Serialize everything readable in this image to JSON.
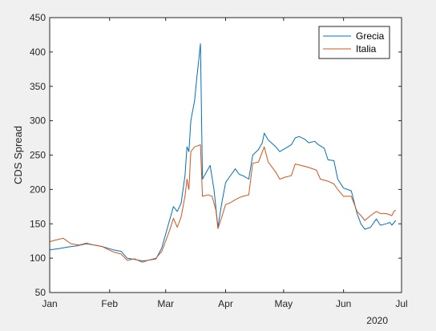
{
  "chart_data": {
    "type": "line",
    "xlabel": "",
    "ylabel": "CDS Spread",
    "ylim": [
      50,
      450
    ],
    "yticks": [
      50,
      100,
      150,
      200,
      250,
      300,
      350,
      400,
      450
    ],
    "xlim": [
      "2020-01-01",
      "2020-07-01"
    ],
    "xticks": [
      {
        "date": "2020-01-01",
        "label": "Jan"
      },
      {
        "date": "2020-02-01",
        "label": "Feb"
      },
      {
        "date": "2020-03-01",
        "label": "Mar"
      },
      {
        "date": "2020-04-01",
        "label": "Apr"
      },
      {
        "date": "2020-05-01",
        "label": "May"
      },
      {
        "date": "2020-06-01",
        "label": "Jun"
      },
      {
        "date": "2020-07-01",
        "label": "Jul"
      }
    ],
    "year_label": "2020",
    "grid": false,
    "legend_position": "top-right",
    "series": [
      {
        "name": "Grecia",
        "color": "#0072BD",
        "points": [
          [
            "2020-01-01",
            112
          ],
          [
            "2020-01-06",
            114
          ],
          [
            "2020-01-10",
            116
          ],
          [
            "2020-01-15",
            118
          ],
          [
            "2020-01-20",
            121
          ],
          [
            "2020-01-24",
            119
          ],
          [
            "2020-01-28",
            117
          ],
          [
            "2020-02-03",
            112
          ],
          [
            "2020-02-07",
            110
          ],
          [
            "2020-02-10",
            100
          ],
          [
            "2020-02-14",
            98
          ],
          [
            "2020-02-18",
            96
          ],
          [
            "2020-02-21",
            97
          ],
          [
            "2020-02-25",
            99
          ],
          [
            "2020-02-28",
            115
          ],
          [
            "2020-03-03",
            155
          ],
          [
            "2020-03-05",
            175
          ],
          [
            "2020-03-07",
            168
          ],
          [
            "2020-03-09",
            180
          ],
          [
            "2020-03-11",
            220
          ],
          [
            "2020-03-12",
            262
          ],
          [
            "2020-03-13",
            255
          ],
          [
            "2020-03-14",
            300
          ],
          [
            "2020-03-16",
            330
          ],
          [
            "2020-03-17",
            360
          ],
          [
            "2020-03-18",
            385
          ],
          [
            "2020-03-19",
            412
          ],
          [
            "2020-03-20",
            215
          ],
          [
            "2020-03-22",
            225
          ],
          [
            "2020-03-24",
            235
          ],
          [
            "2020-03-26",
            200
          ],
          [
            "2020-03-28",
            145
          ],
          [
            "2020-03-30",
            180
          ],
          [
            "2020-04-01",
            210
          ],
          [
            "2020-04-03",
            218
          ],
          [
            "2020-04-06",
            230
          ],
          [
            "2020-04-08",
            222
          ],
          [
            "2020-04-10",
            220
          ],
          [
            "2020-04-13",
            215
          ],
          [
            "2020-04-15",
            250
          ],
          [
            "2020-04-18",
            258
          ],
          [
            "2020-04-20",
            268
          ],
          [
            "2020-04-21",
            282
          ],
          [
            "2020-04-23",
            272
          ],
          [
            "2020-04-27",
            262
          ],
          [
            "2020-04-29",
            255
          ],
          [
            "2020-05-02",
            260
          ],
          [
            "2020-05-05",
            265
          ],
          [
            "2020-05-07",
            275
          ],
          [
            "2020-05-09",
            277
          ],
          [
            "2020-05-12",
            273
          ],
          [
            "2020-05-14",
            268
          ],
          [
            "2020-05-17",
            270
          ],
          [
            "2020-05-19",
            265
          ],
          [
            "2020-05-22",
            260
          ],
          [
            "2020-05-24",
            243
          ],
          [
            "2020-05-27",
            242
          ],
          [
            "2020-05-29",
            215
          ],
          [
            "2020-06-01",
            202
          ],
          [
            "2020-06-03",
            200
          ],
          [
            "2020-06-05",
            198
          ],
          [
            "2020-06-08",
            165
          ],
          [
            "2020-06-10",
            150
          ],
          [
            "2020-06-12",
            142
          ],
          [
            "2020-06-15",
            145
          ],
          [
            "2020-06-18",
            157
          ],
          [
            "2020-06-20",
            148
          ],
          [
            "2020-06-23",
            150
          ],
          [
            "2020-06-25",
            152
          ],
          [
            "2020-06-26",
            148
          ],
          [
            "2020-06-28",
            155
          ]
        ]
      },
      {
        "name": "Italia",
        "color": "#D95319",
        "points": [
          [
            "2020-01-01",
            124
          ],
          [
            "2020-01-05",
            127
          ],
          [
            "2020-01-08",
            129
          ],
          [
            "2020-01-12",
            121
          ],
          [
            "2020-01-16",
            119
          ],
          [
            "2020-01-20",
            122
          ],
          [
            "2020-01-24",
            119
          ],
          [
            "2020-01-28",
            117
          ],
          [
            "2020-02-03",
            109
          ],
          [
            "2020-02-07",
            106
          ],
          [
            "2020-02-10",
            97
          ],
          [
            "2020-02-14",
            99
          ],
          [
            "2020-02-18",
            94
          ],
          [
            "2020-02-21",
            97
          ],
          [
            "2020-02-25",
            100
          ],
          [
            "2020-02-28",
            110
          ],
          [
            "2020-03-03",
            140
          ],
          [
            "2020-03-05",
            158
          ],
          [
            "2020-03-07",
            145
          ],
          [
            "2020-03-09",
            160
          ],
          [
            "2020-03-11",
            190
          ],
          [
            "2020-03-12",
            215
          ],
          [
            "2020-03-13",
            200
          ],
          [
            "2020-03-14",
            255
          ],
          [
            "2020-03-16",
            262
          ],
          [
            "2020-03-19",
            265
          ],
          [
            "2020-03-20",
            190
          ],
          [
            "2020-03-23",
            192
          ],
          [
            "2020-03-25",
            190
          ],
          [
            "2020-03-27",
            170
          ],
          [
            "2020-03-28",
            143
          ],
          [
            "2020-03-30",
            160
          ],
          [
            "2020-04-01",
            178
          ],
          [
            "2020-04-03",
            180
          ],
          [
            "2020-04-06",
            185
          ],
          [
            "2020-04-08",
            188
          ],
          [
            "2020-04-10",
            190
          ],
          [
            "2020-04-13",
            192
          ],
          [
            "2020-04-15",
            238
          ],
          [
            "2020-04-18",
            240
          ],
          [
            "2020-04-21",
            262
          ],
          [
            "2020-04-23",
            240
          ],
          [
            "2020-04-27",
            225
          ],
          [
            "2020-04-29",
            215
          ],
          [
            "2020-05-02",
            218
          ],
          [
            "2020-05-05",
            220
          ],
          [
            "2020-05-07",
            237
          ],
          [
            "2020-05-10",
            235
          ],
          [
            "2020-05-14",
            232
          ],
          [
            "2020-05-18",
            228
          ],
          [
            "2020-05-20",
            215
          ],
          [
            "2020-05-24",
            212
          ],
          [
            "2020-05-27",
            208
          ],
          [
            "2020-05-29",
            200
          ],
          [
            "2020-06-01",
            190
          ],
          [
            "2020-06-05",
            190
          ],
          [
            "2020-06-08",
            168
          ],
          [
            "2020-06-10",
            162
          ],
          [
            "2020-06-12",
            155
          ],
          [
            "2020-06-15",
            162
          ],
          [
            "2020-06-18",
            168
          ],
          [
            "2020-06-20",
            165
          ],
          [
            "2020-06-23",
            165
          ],
          [
            "2020-06-26",
            162
          ],
          [
            "2020-06-27",
            168
          ],
          [
            "2020-06-28",
            170
          ]
        ]
      }
    ]
  }
}
